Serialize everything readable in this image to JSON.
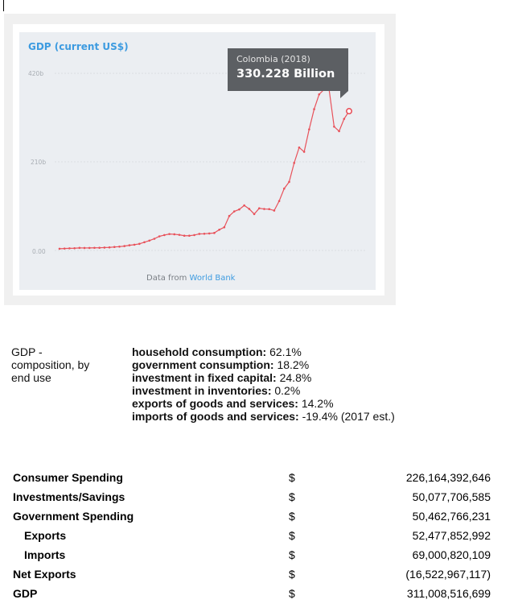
{
  "chart_data": {
    "type": "line",
    "title": "GDP (current US$)",
    "yticks": [
      "0.00",
      "210b",
      "420b"
    ],
    "ylim": [
      0,
      420
    ],
    "xlim": [
      1960,
      2018
    ],
    "x": [
      1960,
      1961,
      1962,
      1963,
      1964,
      1965,
      1966,
      1967,
      1968,
      1969,
      1970,
      1971,
      1972,
      1973,
      1974,
      1975,
      1976,
      1977,
      1978,
      1979,
      1980,
      1981,
      1982,
      1983,
      1984,
      1985,
      1986,
      1987,
      1988,
      1989,
      1990,
      1991,
      1992,
      1993,
      1994,
      1995,
      1996,
      1997,
      1998,
      1999,
      2000,
      2001,
      2002,
      2003,
      2004,
      2005,
      2006,
      2007,
      2008,
      2009,
      2010,
      2011,
      2012,
      2013,
      2014,
      2015,
      2016,
      2017,
      2018
    ],
    "values": [
      4.0,
      4.5,
      5.0,
      5.2,
      6.0,
      5.8,
      5.9,
      6.2,
      6.3,
      6.8,
      7.2,
      8.2,
      9.0,
      10.3,
      12.2,
      13.6,
      15.6,
      19.5,
      23.3,
      27.7,
      33.4,
      36.4,
      38.9,
      38.3,
      37.0,
      34.9,
      34.9,
      36.4,
      39.2,
      39.5,
      40.3,
      41.4,
      49.1,
      55.0,
      81.7,
      92.5,
      97.2,
      106.7,
      98.4,
      86.2,
      99.9,
      98.2,
      97.9,
      94.6,
      117.1,
      146.6,
      162.6,
      207.4,
      244.0,
      233.8,
      287.0,
      334.9,
      370.0,
      381.9,
      381.2,
      293.5,
      282.7,
      311.9,
      330.2
    ],
    "grid": true,
    "highlight": {
      "x": 2018,
      "label": "Colombia (2018)",
      "value_text": "330.228 Billion"
    },
    "source_prefix": "Data from ",
    "source_link": "World Bank",
    "colors": {
      "line": "#e8525b",
      "title": "#3d9be0",
      "tooltip_bg": "#5c5f63"
    }
  },
  "composition": {
    "label": "GDP - composition, by end use",
    "items": [
      {
        "name": "household consumption:",
        "value": "62.1%"
      },
      {
        "name": "government consumption:",
        "value": "18.2%"
      },
      {
        "name": "investment in fixed capital:",
        "value": "24.8%"
      },
      {
        "name": "investment in inventories:",
        "value": "0.2%"
      },
      {
        "name": "exports of goods and services:",
        "value": "14.2%"
      },
      {
        "name": "imports of goods and services:",
        "value": "-19.4% (2017 est.)"
      }
    ]
  },
  "spending_table": {
    "rows": [
      {
        "name": "Consumer Spending",
        "currency": "$",
        "amount": "226,164,392,646",
        "indent": false
      },
      {
        "name": "Investments/Savings",
        "currency": "$",
        "amount": "50,077,706,585",
        "indent": false
      },
      {
        "name": "Government Spending",
        "currency": "$",
        "amount": "50,462,766,231",
        "indent": false
      },
      {
        "name": "Exports",
        "currency": "$",
        "amount": "52,477,852,992",
        "indent": true
      },
      {
        "name": "Imports",
        "currency": "$",
        "amount": "69,000,820,109",
        "indent": true
      },
      {
        "name": "Net Exports",
        "currency": "$",
        "amount": "(16,522,967,117)",
        "indent": false
      },
      {
        "name": "GDP",
        "currency": "$",
        "amount": "311,008,516,699",
        "indent": false
      }
    ]
  }
}
